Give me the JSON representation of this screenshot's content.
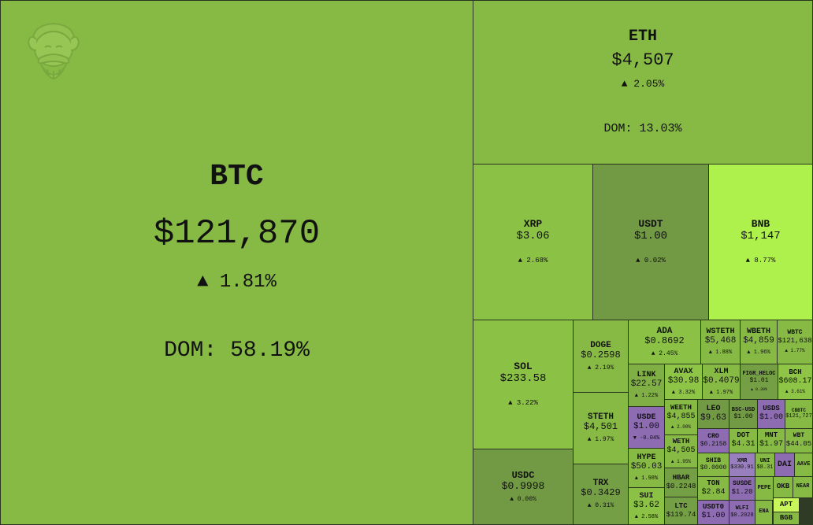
{
  "chart_data": {
    "type": "treemap",
    "colors": {
      "green": "#87ba45",
      "dark_green": "#729a44",
      "bright_green": "#aef04c",
      "mid_green": "#92c84a",
      "purple": "#8e6cb2",
      "purple_light": "#9a7fbf",
      "border": "#2a3520"
    },
    "items": [
      {
        "symbol": "BTC",
        "price": "$121,870",
        "change": "▲ 1.81%",
        "dominance": "DOM: 58.19%",
        "color": "#87ba45"
      },
      {
        "symbol": "ETH",
        "price": "$4,507",
        "change": "▲ 2.05%",
        "dominance": "DOM: 13.03%",
        "color": "#87ba45"
      },
      {
        "symbol": "XRP",
        "price": "$3.06",
        "change": "▲ 2.68%",
        "color": "#8bc246"
      },
      {
        "symbol": "USDT",
        "price": "$1.00",
        "change": "▲ 0.02%",
        "color": "#729a44"
      },
      {
        "symbol": "BNB",
        "price": "$1,147",
        "change": "▲ 8.77%",
        "color": "#aef04c"
      },
      {
        "symbol": "SOL",
        "price": "$233.58",
        "change": "▲ 3.22%",
        "color": "#8bc246"
      },
      {
        "symbol": "USDC",
        "price": "$0.9998",
        "change": "▲ 0.00%",
        "color": "#729a44"
      },
      {
        "symbol": "DOGE",
        "price": "$0.2598",
        "change": "▲ 2.19%",
        "color": "#87ba45"
      },
      {
        "symbol": "STETH",
        "price": "$4,501",
        "change": "▲ 1.97%",
        "color": "#87ba45"
      },
      {
        "symbol": "TRX",
        "price": "$0.3429",
        "change": "▲ 0.31%",
        "color": "#759f44"
      },
      {
        "symbol": "ADA",
        "price": "$0.8692",
        "change": "▲ 2.45%",
        "color": "#8bc246"
      },
      {
        "symbol": "WSTETH",
        "price": "$5,468",
        "change": "▲ 1.88%",
        "color": "#87ba45"
      },
      {
        "symbol": "WBETH",
        "price": "$4,859",
        "change": "▲ 1.96%",
        "color": "#87ba45"
      },
      {
        "symbol": "WBTC",
        "price": "$121,638",
        "change": "▲ 1.77%",
        "color": "#87ba45"
      },
      {
        "symbol": "LINK",
        "price": "$22.57",
        "change": "▲ 1.22%",
        "color": "#80b045"
      },
      {
        "symbol": "AVAX",
        "price": "$30.98",
        "change": "▲ 3.32%",
        "color": "#8ec547"
      },
      {
        "symbol": "XLM",
        "price": "$0.4079",
        "change": "▲ 1.97%",
        "color": "#87ba45"
      },
      {
        "symbol": "FIGR_HELOC",
        "price": "$1.01",
        "change": "▲ 0.39%",
        "color": "#759f44"
      },
      {
        "symbol": "BCH",
        "price": "$608.17",
        "change": "▲ 3.61%",
        "color": "#8ec547"
      },
      {
        "symbol": "USDE",
        "price": "$1.00",
        "change": "▼ -0.04%",
        "color": "#8e6cb2"
      },
      {
        "symbol": "WEETH",
        "price": "$4,855",
        "change": "▲ 2.00%",
        "color": "#87ba45"
      },
      {
        "symbol": "LEO",
        "price": "$9.63",
        "change": "",
        "color": "#729a44"
      },
      {
        "symbol": "BSC-USD",
        "price": "$1.00",
        "change": "",
        "color": "#729a44"
      },
      {
        "symbol": "USDS",
        "price": "$1.00",
        "change": "",
        "color": "#8e6cb2"
      },
      {
        "symbol": "CBBTC",
        "price": "$121,727",
        "change": "",
        "color": "#87ba45"
      },
      {
        "symbol": "WETH",
        "price": "$4,505",
        "change": "▲ 1.95%",
        "color": "#87ba45"
      },
      {
        "symbol": "CRO",
        "price": "$0.2158",
        "change": "",
        "color": "#8e6cb2"
      },
      {
        "symbol": "DOT",
        "price": "$4.31",
        "change": "",
        "color": "#87ba45"
      },
      {
        "symbol": "MNT",
        "price": "$1.97",
        "change": "",
        "color": "#87ba45"
      },
      {
        "symbol": "WBT",
        "price": "$44.05",
        "change": "",
        "color": "#87ba45"
      },
      {
        "symbol": "HYPE",
        "price": "$50.03",
        "change": "▲ 1.98%",
        "color": "#87ba45"
      },
      {
        "symbol": "SHIB",
        "price": "$0.0000",
        "change": "",
        "color": "#87ba45"
      },
      {
        "symbol": "XMR",
        "price": "$330.91",
        "change": "",
        "color": "#9a7fbf"
      },
      {
        "symbol": "UNI",
        "price": "$8.31",
        "change": "",
        "color": "#87ba45"
      },
      {
        "symbol": "DAI",
        "price": "",
        "change": "",
        "color": "#8e6cb2"
      },
      {
        "symbol": "AAVE",
        "price": "",
        "change": "",
        "color": "#87ba45"
      },
      {
        "symbol": "HBAR",
        "price": "$0.2248",
        "change": "",
        "color": "#759f44"
      },
      {
        "symbol": "TON",
        "price": "$2.84",
        "change": "",
        "color": "#87ba45"
      },
      {
        "symbol": "SUSDE",
        "price": "$1.20",
        "change": "",
        "color": "#8e6cb2"
      },
      {
        "symbol": "PEPE",
        "price": "",
        "change": "",
        "color": "#87ba45"
      },
      {
        "symbol": "OKB",
        "price": "",
        "change": "",
        "color": "#87ba45"
      },
      {
        "symbol": "NEAR",
        "price": "",
        "change": "",
        "color": "#87ba45"
      },
      {
        "symbol": "SUI",
        "price": "$3.62",
        "change": "▲ 2.58%",
        "color": "#8bc246"
      },
      {
        "symbol": "LTC",
        "price": "$119.74",
        "change": "",
        "color": "#759f44"
      },
      {
        "symbol": "USDT0",
        "price": "$1.00",
        "change": "",
        "color": "#8e6cb2"
      },
      {
        "symbol": "WLFI",
        "price": "$0.2028",
        "change": "",
        "color": "#8e6cb2"
      },
      {
        "symbol": "ENA",
        "price": "",
        "change": "",
        "color": "#87ba45"
      },
      {
        "symbol": "APT",
        "price": "",
        "change": "",
        "color": "#c8f55a"
      },
      {
        "symbol": "BGB",
        "price": "",
        "change": "",
        "color": "#87ba45"
      }
    ]
  }
}
